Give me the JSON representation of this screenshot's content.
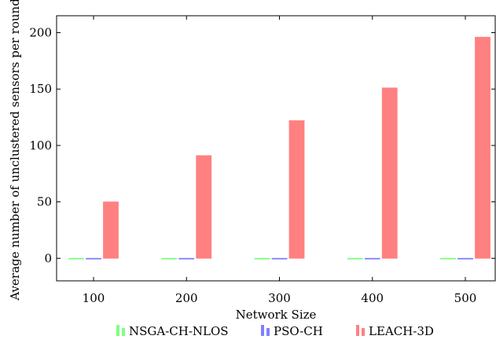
{
  "chart_data": {
    "type": "bar",
    "title": "",
    "xlabel": "Network Size",
    "ylabel": "Average number of unclustered sensors per round",
    "categories": [
      "100",
      "200",
      "300",
      "400",
      "500"
    ],
    "ylim": [
      -20,
      215
    ],
    "yticks": [
      0,
      50,
      100,
      150,
      200
    ],
    "ytick_labels": [
      "0",
      "50",
      "100",
      "150",
      "200"
    ],
    "grid": false,
    "legend_position": "bottom-center",
    "series": [
      {
        "name": "NSGA-CH-NLOS",
        "color": "#80ff80",
        "values": [
          0,
          0,
          0,
          0,
          0
        ]
      },
      {
        "name": "PSO-CH",
        "color": "#8080ff",
        "values": [
          0,
          0,
          0,
          0,
          0
        ]
      },
      {
        "name": "LEACH-3D",
        "color": "#ff8080",
        "values": [
          50,
          91,
          122,
          151,
          196
        ]
      }
    ]
  }
}
